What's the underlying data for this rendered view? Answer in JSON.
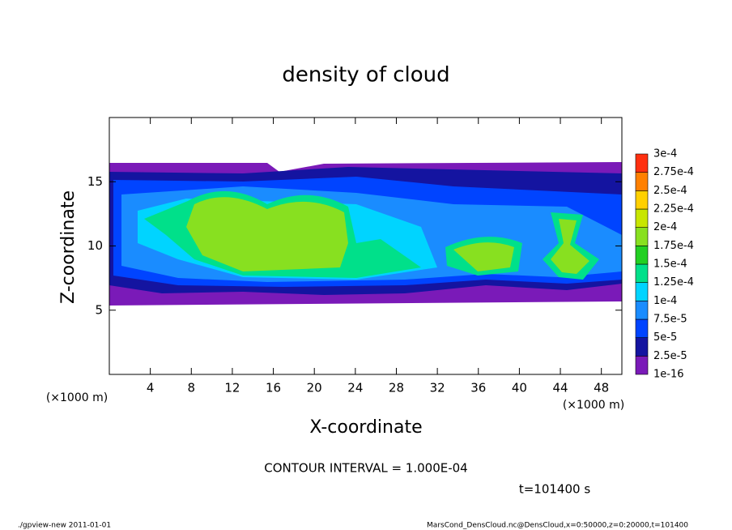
{
  "chart_data": {
    "type": "contour",
    "title": "density of cloud",
    "xlabel": "X-coordinate",
    "ylabel": "Z-coordinate",
    "xunit": "(×1000 m)",
    "yunit": "(×1000 m)",
    "xlim": [
      0,
      50
    ],
    "ylim": [
      0,
      20
    ],
    "xticks": [
      4,
      8,
      12,
      16,
      20,
      24,
      28,
      32,
      36,
      40,
      44,
      48
    ],
    "yticks": [
      5,
      10,
      15
    ],
    "levels": [
      {
        "value": 1e-16,
        "label": "1e-16"
      },
      {
        "value": 2.5e-05,
        "label": "2.5e-5"
      },
      {
        "value": 5e-05,
        "label": "5e-5"
      },
      {
        "value": 7.5e-05,
        "label": "7.5e-5"
      },
      {
        "value": 0.0001,
        "label": "1e-4"
      },
      {
        "value": 0.000125,
        "label": "1.25e-4"
      },
      {
        "value": 0.00015,
        "label": "1.5e-4"
      },
      {
        "value": 0.000175,
        "label": "1.75e-4"
      },
      {
        "value": 0.0002,
        "label": "2e-4"
      },
      {
        "value": 0.000225,
        "label": "2.25e-4"
      },
      {
        "value": 0.00025,
        "label": "2.5e-4"
      },
      {
        "value": 0.000275,
        "label": "2.75e-4"
      },
      {
        "value": 0.0003,
        "label": "3e-4"
      }
    ],
    "colors": [
      "#7a1ab8",
      "#1414a0",
      "#0044ff",
      "#1a8cff",
      "#00d4ff",
      "#00e08a",
      "#22d022",
      "#88e020",
      "#c8e600",
      "#ffd000",
      "#ff8000",
      "#ff3010"
    ],
    "annotation": "CONTOUR INTERVAL = 1.000E-04",
    "time": "t=101400 s",
    "footer_left": "./gpview-new  2011-01-01",
    "footer_right": "MarsCond_DensCloud.nc@DensCloud,x=0:50000,z=0:20000,t=101400"
  }
}
